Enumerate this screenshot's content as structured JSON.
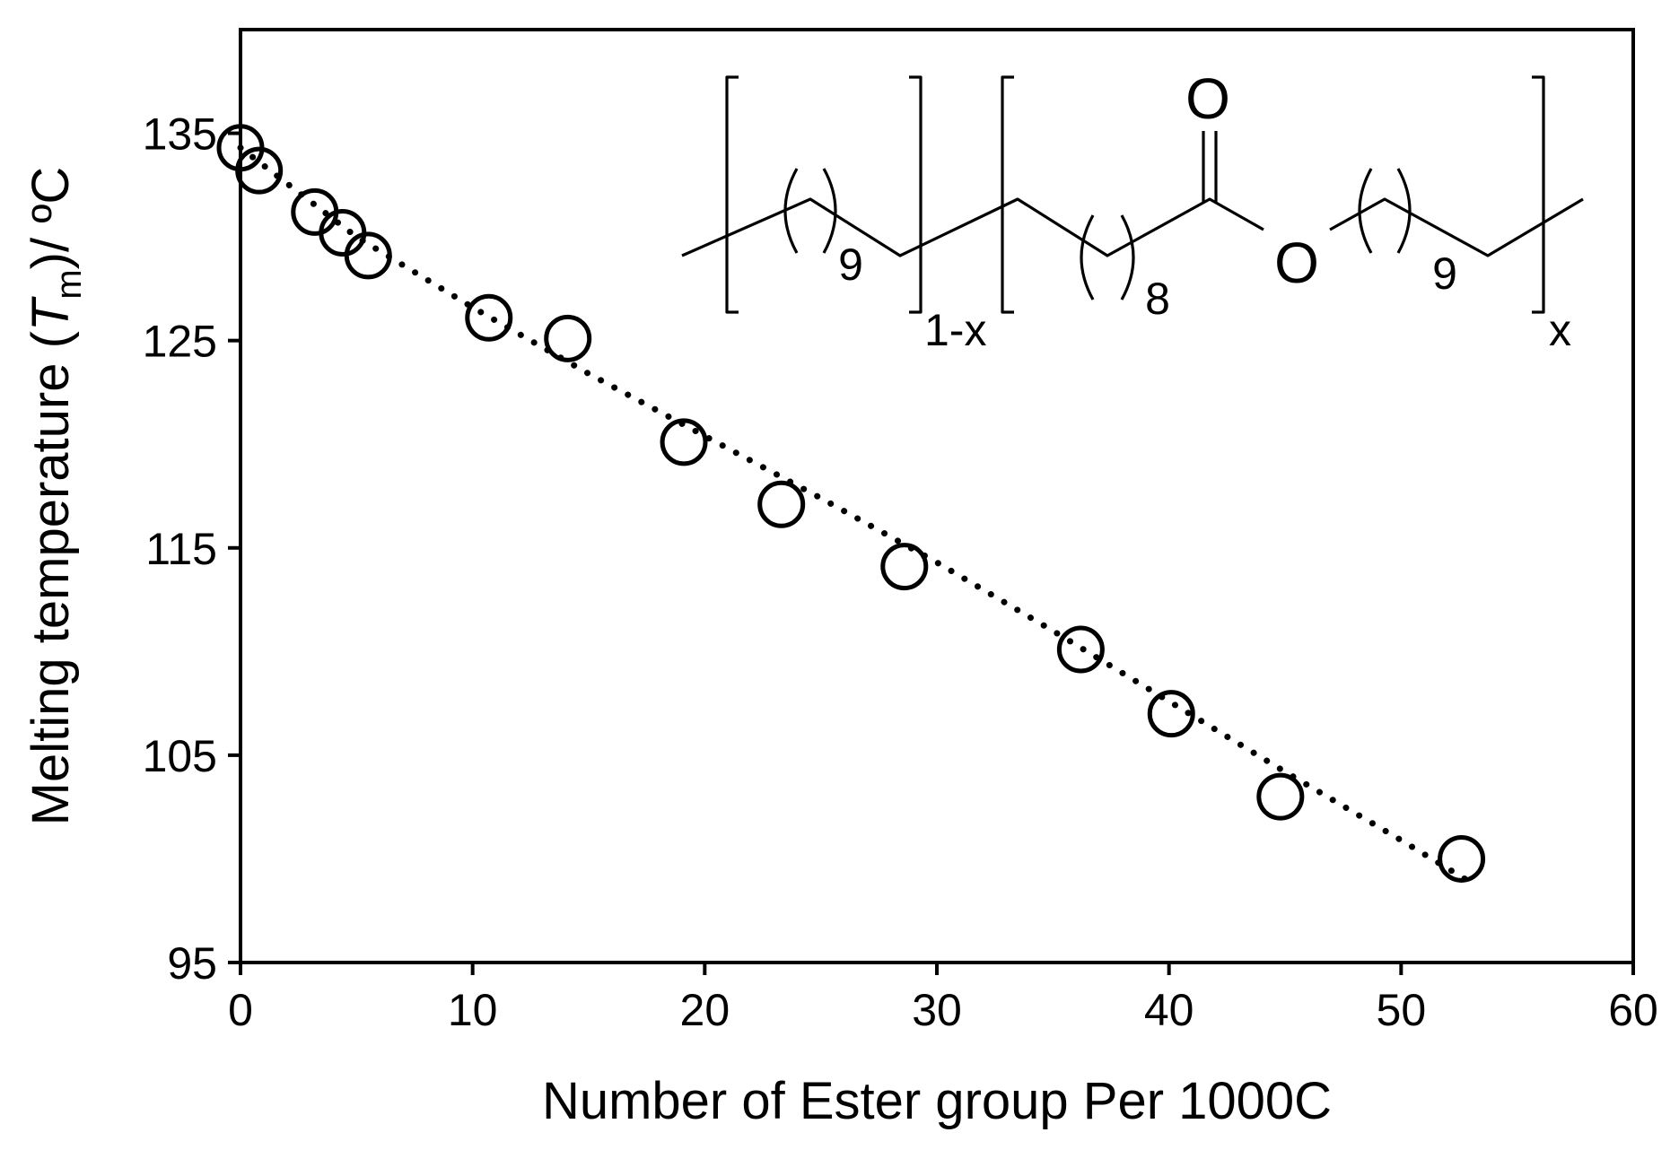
{
  "chart_data": {
    "type": "scatter",
    "xlabel": "Number of Ester group Per 1000C",
    "ylabel_parts": {
      "prefix": "Melting temperature (",
      "symbol": "T",
      "subscript": "m",
      "suffix": ")/ ºC"
    },
    "xlim": [
      0,
      60
    ],
    "ylim": [
      95,
      140
    ],
    "x_ticks": [
      "0",
      "10",
      "20",
      "30",
      "40",
      "50",
      "60"
    ],
    "y_ticks": [
      "95",
      "105",
      "115",
      "125",
      "135"
    ],
    "grid": false,
    "legend": "none",
    "series": [
      {
        "marker": "open-circle",
        "points": [
          {
            "x": 0.0,
            "y": 134.3
          },
          {
            "x": 0.8,
            "y": 133.2
          },
          {
            "x": 3.2,
            "y": 131.2
          },
          {
            "x": 4.4,
            "y": 130.2
          },
          {
            "x": 5.5,
            "y": 129.1
          },
          {
            "x": 10.7,
            "y": 126.1
          },
          {
            "x": 14.1,
            "y": 125.1
          },
          {
            "x": 19.1,
            "y": 120.1
          },
          {
            "x": 23.3,
            "y": 117.1
          },
          {
            "x": 28.6,
            "y": 114.1
          },
          {
            "x": 36.2,
            "y": 110.1
          },
          {
            "x": 40.1,
            "y": 107.0
          },
          {
            "x": 44.8,
            "y": 103.0
          },
          {
            "x": 52.6,
            "y": 100.0
          }
        ]
      }
    ],
    "trendline": {
      "style": "dotted",
      "x": [
        0.0,
        5,
        10,
        15,
        20,
        25,
        30,
        35,
        40,
        45,
        50,
        52.8
      ],
      "y": [
        134.3,
        130.0,
        126.6,
        123.4,
        120.4,
        117.4,
        114.3,
        111.0,
        107.6,
        104.2,
        100.9,
        99.0
      ]
    },
    "annotation": {
      "type": "chemical-structure",
      "labels": {
        "oxygen_top": "O",
        "oxygen_ester": "O",
        "n1": "9",
        "n2": "8",
        "n3": "9",
        "sub1": "1-x",
        "sub2": "x"
      }
    }
  }
}
